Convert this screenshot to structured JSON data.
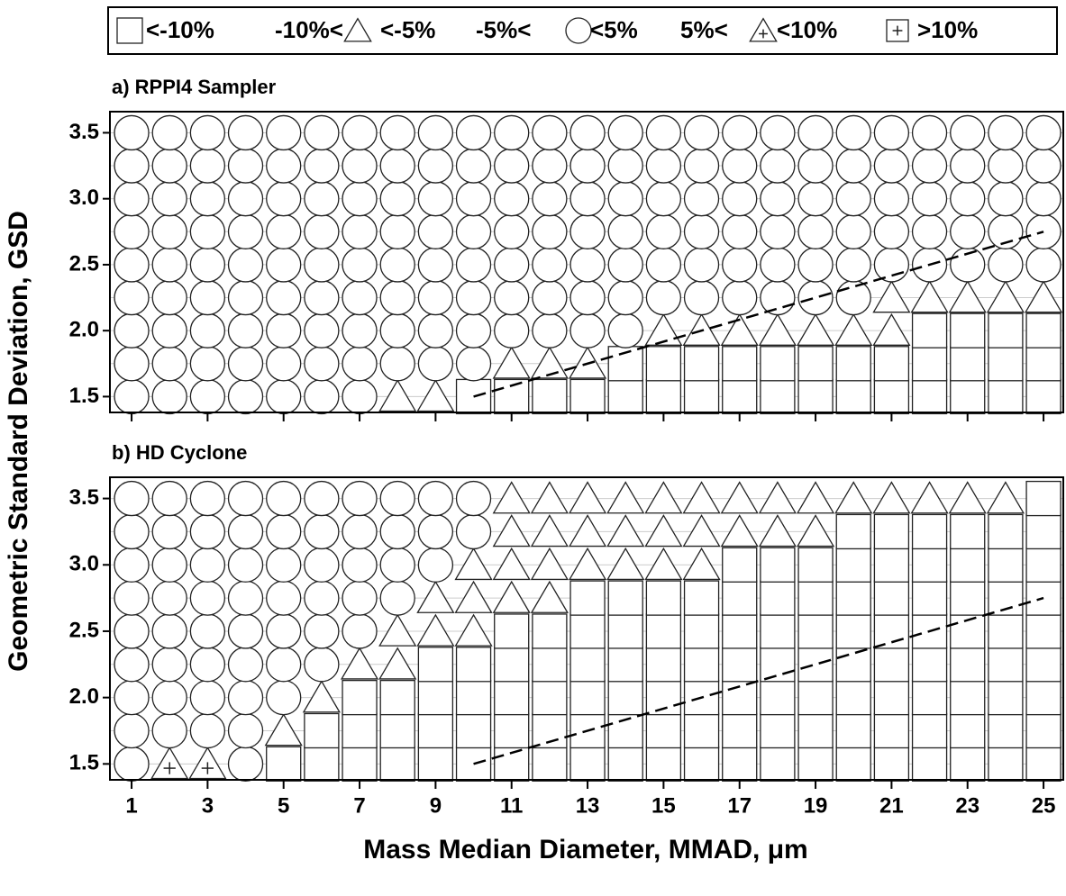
{
  "legend": [
    [
      "<-10%"
    ],
    [
      "-10%<",
      "<-5%"
    ],
    [
      "-5%<",
      "<5%"
    ],
    [
      "5%<",
      "<10%"
    ],
    [
      ">10%"
    ]
  ],
  "x_label": "Mass Median Diameter, MMAD, μm",
  "y_label": "Geometric Standard Deviation, GSD",
  "chart_data": [
    {
      "type": "scatter",
      "title": "a) RPPI4 Sampler",
      "x": [
        1,
        2,
        3,
        4,
        5,
        6,
        7,
        8,
        9,
        10,
        11,
        12,
        13,
        14,
        15,
        16,
        17,
        18,
        19,
        20,
        21,
        22,
        23,
        24,
        25
      ],
      "y": [
        1.5,
        1.75,
        2.0,
        2.25,
        2.5,
        2.75,
        3.0,
        3.25,
        3.5
      ],
      "values": [
        [
          2,
          2,
          2,
          2,
          2,
          2,
          2,
          1,
          1,
          0,
          0,
          0,
          0,
          0,
          0,
          0,
          0,
          0,
          0,
          0,
          0,
          0,
          0,
          0,
          0
        ],
        [
          2,
          2,
          2,
          2,
          2,
          2,
          2,
          2,
          2,
          2,
          1,
          1,
          1,
          0,
          0,
          0,
          0,
          0,
          0,
          0,
          0,
          0,
          0,
          0,
          0
        ],
        [
          2,
          2,
          2,
          2,
          2,
          2,
          2,
          2,
          2,
          2,
          2,
          2,
          2,
          2,
          1,
          1,
          1,
          1,
          1,
          1,
          1,
          0,
          0,
          0,
          0
        ],
        [
          2,
          2,
          2,
          2,
          2,
          2,
          2,
          2,
          2,
          2,
          2,
          2,
          2,
          2,
          2,
          2,
          2,
          2,
          2,
          2,
          1,
          1,
          1,
          1,
          1
        ],
        [
          2,
          2,
          2,
          2,
          2,
          2,
          2,
          2,
          2,
          2,
          2,
          2,
          2,
          2,
          2,
          2,
          2,
          2,
          2,
          2,
          2,
          2,
          2,
          2,
          2
        ],
        [
          2,
          2,
          2,
          2,
          2,
          2,
          2,
          2,
          2,
          2,
          2,
          2,
          2,
          2,
          2,
          2,
          2,
          2,
          2,
          2,
          2,
          2,
          2,
          2,
          2
        ],
        [
          2,
          2,
          2,
          2,
          2,
          2,
          2,
          2,
          2,
          2,
          2,
          2,
          2,
          2,
          2,
          2,
          2,
          2,
          2,
          2,
          2,
          2,
          2,
          2,
          2
        ],
        [
          2,
          2,
          2,
          2,
          2,
          2,
          2,
          2,
          2,
          2,
          2,
          2,
          2,
          2,
          2,
          2,
          2,
          2,
          2,
          2,
          2,
          2,
          2,
          2,
          2
        ],
        [
          2,
          2,
          2,
          2,
          2,
          2,
          2,
          2,
          2,
          2,
          2,
          2,
          2,
          2,
          2,
          2,
          2,
          2,
          2,
          2,
          2,
          2,
          2,
          2,
          2
        ]
      ],
      "line": {
        "x": [
          10,
          25
        ],
        "y": [
          1.5,
          2.75
        ]
      },
      "xlim": [
        0.43,
        25.52
      ],
      "ylim": [
        1.38,
        3.66
      ],
      "yticks": [
        1.5,
        {
          "value": 2,
          "label": "2.0"
        },
        2.5,
        {
          "value": 3,
          "label": "3.0"
        },
        3.5
      ]
    },
    {
      "type": "scatter",
      "title": "b) HD Cyclone",
      "x": [
        1,
        2,
        3,
        4,
        5,
        6,
        7,
        8,
        9,
        10,
        11,
        12,
        13,
        14,
        15,
        16,
        17,
        18,
        19,
        20,
        21,
        22,
        23,
        24,
        25
      ],
      "y": [
        1.5,
        1.75,
        2.0,
        2.25,
        2.5,
        2.75,
        3.0,
        3.25,
        3.5
      ],
      "values": [
        [
          2,
          3,
          3,
          2,
          0,
          0,
          0,
          0,
          0,
          0,
          0,
          0,
          0,
          0,
          0,
          0,
          0,
          0,
          0,
          0,
          0,
          0,
          0,
          0,
          0
        ],
        [
          2,
          2,
          2,
          2,
          1,
          0,
          0,
          0,
          0,
          0,
          0,
          0,
          0,
          0,
          0,
          0,
          0,
          0,
          0,
          0,
          0,
          0,
          0,
          0,
          0
        ],
        [
          2,
          2,
          2,
          2,
          2,
          1,
          0,
          0,
          0,
          0,
          0,
          0,
          0,
          0,
          0,
          0,
          0,
          0,
          0,
          0,
          0,
          0,
          0,
          0,
          0
        ],
        [
          2,
          2,
          2,
          2,
          2,
          2,
          1,
          1,
          0,
          0,
          0,
          0,
          0,
          0,
          0,
          0,
          0,
          0,
          0,
          0,
          0,
          0,
          0,
          0,
          0
        ],
        [
          2,
          2,
          2,
          2,
          2,
          2,
          2,
          1,
          1,
          1,
          0,
          0,
          0,
          0,
          0,
          0,
          0,
          0,
          0,
          0,
          0,
          0,
          0,
          0,
          0
        ],
        [
          2,
          2,
          2,
          2,
          2,
          2,
          2,
          2,
          1,
          1,
          1,
          1,
          0,
          0,
          0,
          0,
          0,
          0,
          0,
          0,
          0,
          0,
          0,
          0,
          0
        ],
        [
          2,
          2,
          2,
          2,
          2,
          2,
          2,
          2,
          2,
          1,
          1,
          1,
          1,
          1,
          1,
          1,
          0,
          0,
          0,
          0,
          0,
          0,
          0,
          0,
          0
        ],
        [
          2,
          2,
          2,
          2,
          2,
          2,
          2,
          2,
          2,
          2,
          1,
          1,
          1,
          1,
          1,
          1,
          1,
          1,
          1,
          0,
          0,
          0,
          0,
          0,
          0
        ],
        [
          2,
          2,
          2,
          2,
          2,
          2,
          2,
          2,
          2,
          2,
          1,
          1,
          1,
          1,
          1,
          1,
          1,
          1,
          1,
          1,
          1,
          1,
          1,
          1,
          0
        ]
      ],
      "line": {
        "x": [
          10,
          25
        ],
        "y": [
          1.5,
          2.75
        ]
      },
      "xlim": [
        0.43,
        25.52
      ],
      "ylim": [
        1.38,
        3.66
      ],
      "xticks": [
        1,
        3,
        5,
        7,
        9,
        11,
        13,
        15,
        17,
        19,
        21,
        23,
        25
      ],
      "yticks": [
        1.5,
        {
          "value": 2,
          "label": "2.0"
        },
        2.5,
        {
          "value": 3,
          "label": "3.0"
        },
        3.5
      ]
    }
  ]
}
